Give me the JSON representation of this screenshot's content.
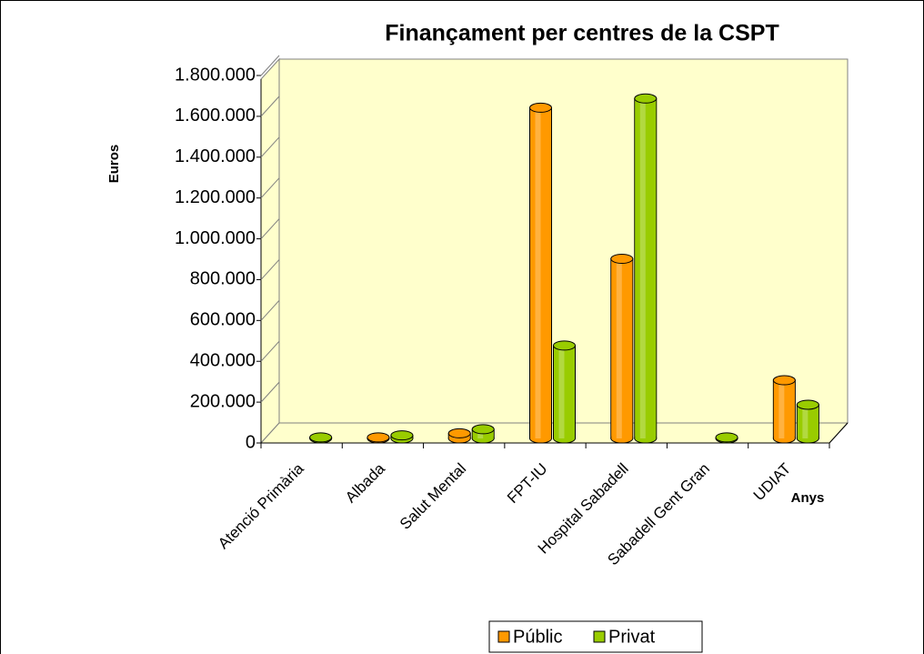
{
  "chart_data": {
    "type": "bar",
    "title": "Finançament per centres de la CSPT",
    "y_label": "Euros",
    "x_label": "Anys",
    "categories": [
      "Atenció Primària",
      "Albada",
      "Salut Mental",
      "FPT-IU",
      "Hospital Sabadell",
      "Sabadell Gent Gran",
      "UDIAT"
    ],
    "series": [
      {
        "name": "Públic",
        "color": "#ff9900",
        "values": [
          0,
          5000,
          25000,
          1620000,
          880000,
          0,
          285000
        ]
      },
      {
        "name": "Privat",
        "color": "#99cc00",
        "values": [
          5000,
          15000,
          45000,
          455000,
          1665000,
          5000,
          165000
        ]
      }
    ],
    "ylim": [
      0,
      1800000
    ],
    "yticks": [
      0,
      {
        "value": 200000,
        "label": "200.000"
      },
      {
        "value": 400000,
        "label": "400.000"
      },
      {
        "value": 600000,
        "label": "600.000"
      },
      {
        "value": 800000,
        "label": "800.000"
      },
      {
        "value": 1000000,
        "label": "1.000.000"
      },
      {
        "value": 1200000,
        "label": "1.200.000"
      },
      {
        "value": 1400000,
        "label": "1.400.000"
      },
      {
        "value": 1600000,
        "label": "1.600.000"
      },
      {
        "value": 1800000,
        "label": "1.800.000"
      }
    ],
    "legend": "bottom"
  }
}
